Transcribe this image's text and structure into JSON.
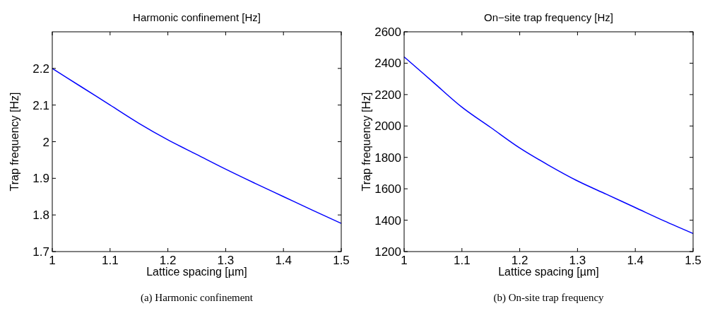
{
  "chart_data": [
    {
      "type": "line",
      "title": "Harmonic confinement [Hz]",
      "xlabel": "Lattice spacing [µm]",
      "ylabel": "Trap frequency [Hz]",
      "annotations": [
        "(a)  Harmonic confinement"
      ],
      "x": [
        1,
        1.05,
        1.1,
        1.15,
        1.2,
        1.25,
        1.3,
        1.35,
        1.4,
        1.45,
        1.5
      ],
      "series": [
        {
          "color": "#0000ff",
          "values": [
            2.2,
            2.15,
            2.1,
            2.05,
            2.005,
            1.965,
            1.925,
            1.887,
            1.85,
            1.813,
            1.777
          ]
        }
      ],
      "xlim": [
        1,
        1.5
      ],
      "xticks": [
        1,
        1.1,
        1.2,
        1.3,
        1.4,
        1.5
      ],
      "ylim": [
        1.7,
        2.3
      ],
      "yticks": [
        1.7,
        1.8,
        1.9,
        2,
        2.1,
        2.2
      ],
      "grid": false
    },
    {
      "type": "line",
      "title": "On−site trap frequency [Hz]",
      "xlabel": "Lattice spacing [µm]",
      "ylabel": "Trap frequency [Hz]",
      "annotations": [
        "(b)  On-site trap frequency"
      ],
      "x": [
        1,
        1.05,
        1.1,
        1.15,
        1.2,
        1.25,
        1.3,
        1.35,
        1.4,
        1.45,
        1.5
      ],
      "series": [
        {
          "color": "#0000ff",
          "values": [
            2440,
            2280,
            2120,
            1990,
            1860,
            1750,
            1650,
            1565,
            1480,
            1395,
            1315
          ]
        }
      ],
      "xlim": [
        1,
        1.5
      ],
      "xticks": [
        1,
        1.1,
        1.2,
        1.3,
        1.4,
        1.5
      ],
      "ylim": [
        1200,
        2600
      ],
      "yticks": [
        1200,
        1400,
        1600,
        1800,
        2000,
        2200,
        2400,
        2600
      ],
      "grid": false
    }
  ]
}
